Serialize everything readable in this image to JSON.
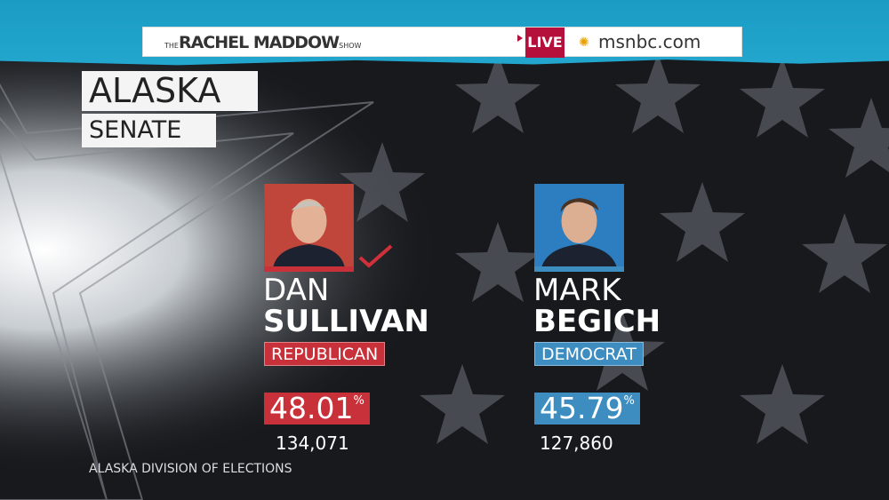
{
  "header": {
    "show_the": "THE",
    "show_name": "RACHEL MADDOW",
    "show_suffix": "SHOW",
    "live_label": "LIVE",
    "site": "msnbc.com",
    "icon": "nbc-peacock-icon"
  },
  "race": {
    "state": "ALASKA",
    "office": "SENATE"
  },
  "candidates": [
    {
      "first": "DAN",
      "last": "SULLIVAN",
      "party": "REPUBLICAN",
      "percent": "48.01",
      "percent_sign": "%",
      "votes": "134,071",
      "winner": true,
      "color": "#c8313a"
    },
    {
      "first": "MARK",
      "last": "BEGICH",
      "party": "DEMOCRAT",
      "percent": "45.79",
      "percent_sign": "%",
      "votes": "127,860",
      "winner": false,
      "color": "#3d8dc0"
    }
  ],
  "source": "ALASKA DIVISION OF ELECTIONS"
}
